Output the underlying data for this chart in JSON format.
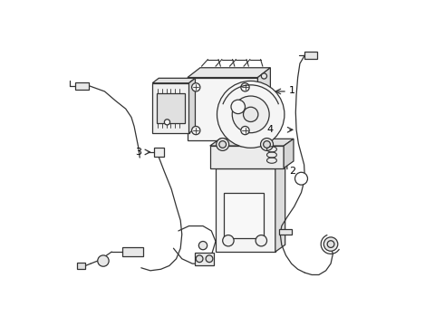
{
  "background_color": "#ffffff",
  "line_color": "#333333",
  "line_width": 0.9,
  "label_color": "#000000",
  "label_fontsize": 8,
  "fig_width": 4.9,
  "fig_height": 3.6,
  "dpi": 100
}
